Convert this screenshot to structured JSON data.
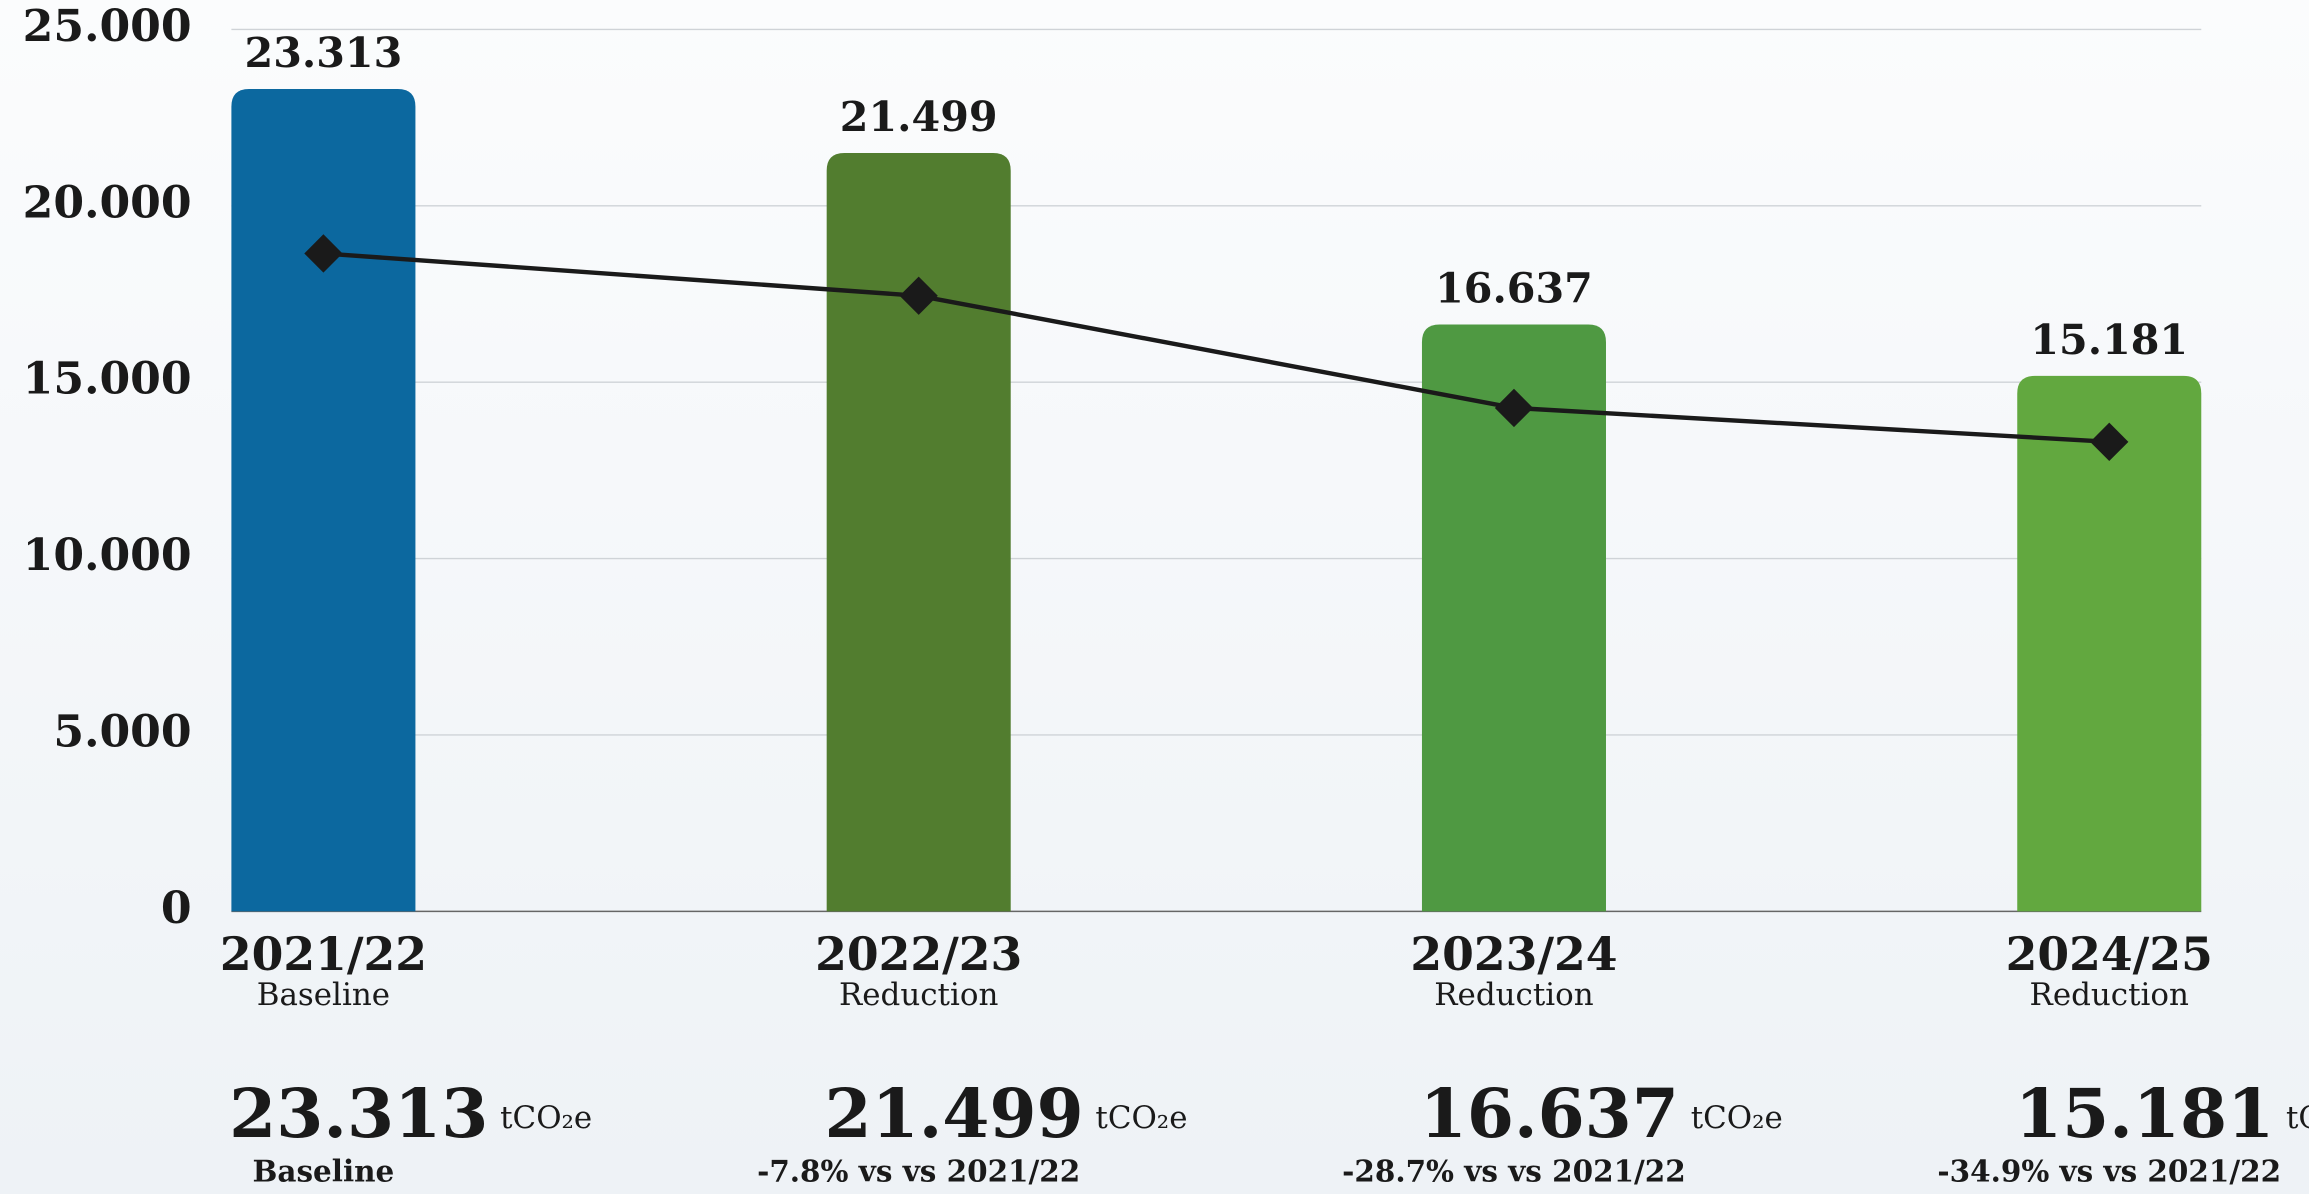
{
  "chart_data": {
    "type": "bar",
    "categories": [
      "2021/22",
      "2022/23",
      "2023/24",
      "2024/25"
    ],
    "sublabels": [
      "Baseline",
      "Reduction",
      "Reduction",
      "Reduction"
    ],
    "values": [
      23313,
      21499,
      16637,
      15181
    ],
    "value_labels": [
      "23.313",
      "21.499",
      "16.637",
      "15.181"
    ],
    "colors": [
      "#0c689f",
      "#527d2f",
      "#4f9942",
      "#62a83f"
    ],
    "line": {
      "color": "#1a1a1a",
      "values": [
        18650,
        17450,
        14270,
        13310
      ]
    },
    "ylim": [
      0,
      25000
    ],
    "yticks": [
      0,
      {
        "value": 5000,
        "label": "5.000"
      },
      {
        "value": 10000,
        "label": "10.000"
      },
      {
        "value": 15000,
        "label": "15.000"
      },
      {
        "value": 20000,
        "label": "20.000"
      },
      {
        "value": 25000,
        "label": "25.000"
      }
    ],
    "grid": true,
    "summary": {
      "unit": "tCO₂e",
      "notes": [
        "Baseline",
        "-7.8% vs vs 2021/22",
        "-28.7% vs vs 2021/22",
        "-34.9% vs vs 2021/22"
      ]
    }
  }
}
